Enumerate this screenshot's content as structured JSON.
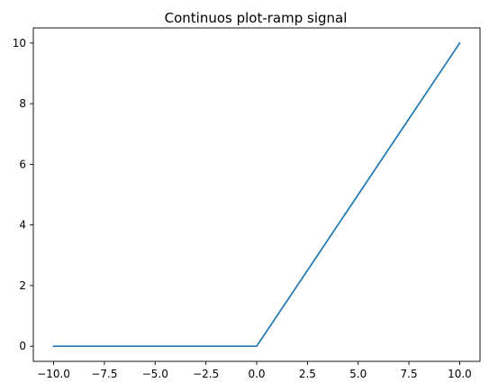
{
  "chart_data": {
    "type": "line",
    "title": "Continuos plot-ramp signal",
    "xlabel": "",
    "ylabel": "",
    "xlim": [
      -11,
      11
    ],
    "ylim": [
      -0.5,
      10.5
    ],
    "x_ticks": [
      -10.0,
      -7.5,
      -5.0,
      -2.5,
      0.0,
      2.5,
      5.0,
      7.5,
      10.0
    ],
    "x_tick_labels": [
      "−10.0",
      "−7.5",
      "−5.0",
      "−2.5",
      "0.0",
      "2.5",
      "5.0",
      "7.5",
      "10.0"
    ],
    "y_ticks": [
      0,
      2,
      4,
      6,
      8,
      10
    ],
    "y_tick_labels": [
      "0",
      "2",
      "4",
      "6",
      "8",
      "10"
    ],
    "grid": false,
    "series": [
      {
        "color": "#1f77b4",
        "x": [
          -10,
          -7.5,
          -5,
          -2.5,
          0,
          2.5,
          5,
          7.5,
          10
        ],
        "y": [
          0,
          0,
          0,
          0,
          0,
          2.5,
          5,
          7.5,
          10
        ]
      }
    ]
  }
}
